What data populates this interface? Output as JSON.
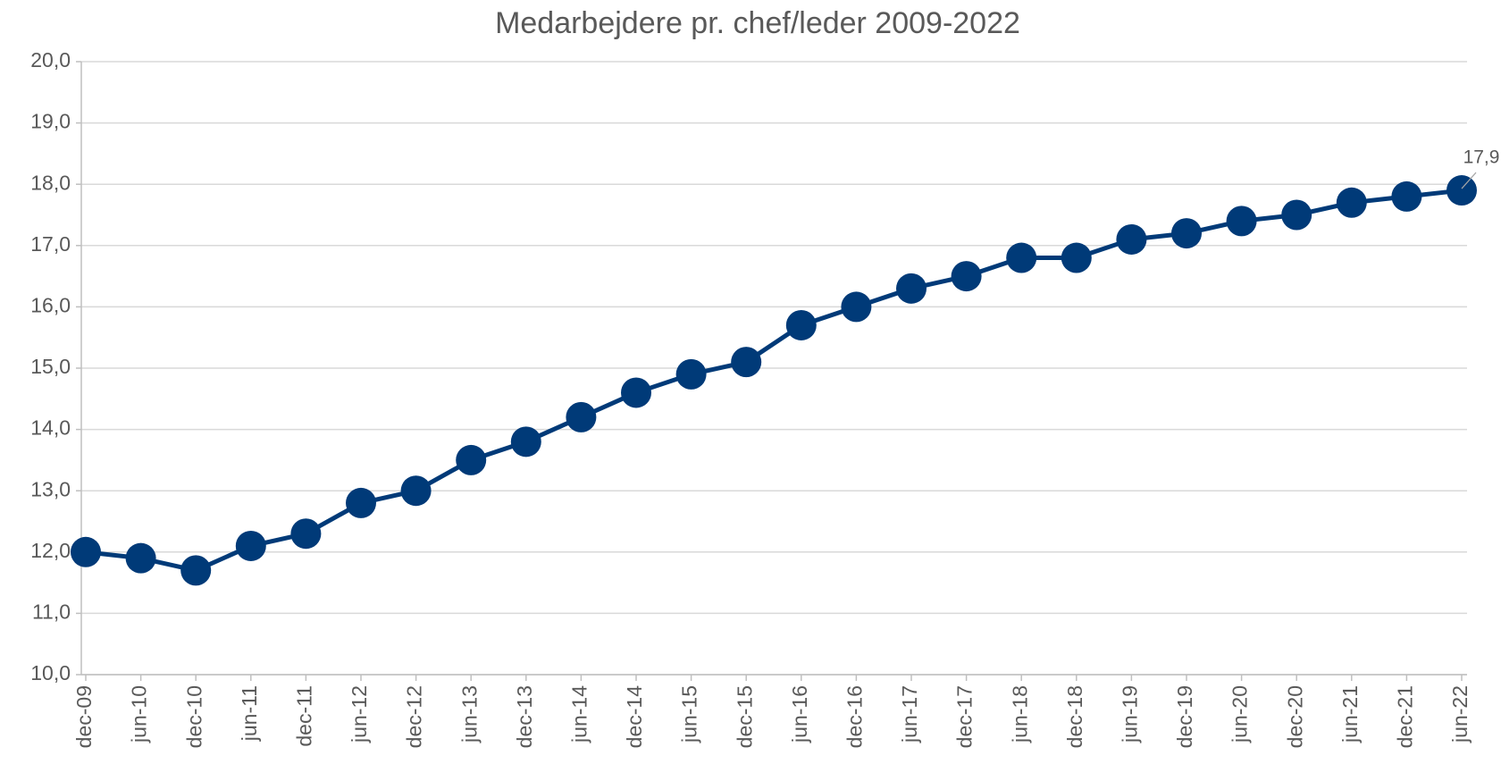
{
  "chart_data": {
    "type": "line",
    "title": "Medarbejdere pr. chef/leder 2009-2022",
    "categories": [
      "dec-09",
      "jun-10",
      "dec-10",
      "jun-11",
      "dec-11",
      "jun-12",
      "dec-12",
      "jun-13",
      "dec-13",
      "jun-14",
      "dec-14",
      "jun-15",
      "dec-15",
      "jun-16",
      "dec-16",
      "jun-17",
      "dec-17",
      "jun-18",
      "dec-18",
      "jun-19",
      "dec-19",
      "jun-20",
      "dec-20",
      "jun-21",
      "dec-21",
      "jun-22"
    ],
    "series": [
      {
        "name": "Medarbejdere pr. chef/leder",
        "color": "#003a78",
        "values": [
          12.0,
          11.9,
          11.7,
          12.1,
          12.3,
          12.8,
          13.0,
          13.5,
          13.8,
          14.2,
          14.6,
          14.9,
          15.1,
          15.7,
          16.0,
          16.3,
          16.5,
          16.8,
          16.8,
          17.1,
          17.2,
          17.4,
          17.5,
          17.7,
          17.8,
          17.9
        ],
        "value_labels": [
          null,
          null,
          null,
          null,
          null,
          null,
          null,
          null,
          null,
          null,
          null,
          null,
          null,
          null,
          null,
          null,
          null,
          null,
          null,
          null,
          null,
          null,
          null,
          null,
          null,
          "17,9"
        ]
      }
    ],
    "ylim": [
      10,
      20
    ],
    "yticks": [
      {
        "value": 10,
        "label": "10,0"
      },
      {
        "value": 11,
        "label": "11,0"
      },
      {
        "value": 12,
        "label": "12,0"
      },
      {
        "value": 13,
        "label": "13,0"
      },
      {
        "value": 14,
        "label": "14,0"
      },
      {
        "value": 15,
        "label": "15,0"
      },
      {
        "value": 16,
        "label": "16,0"
      },
      {
        "value": 17,
        "label": "17,0"
      },
      {
        "value": 18,
        "label": "18,0"
      },
      {
        "value": 19,
        "label": "19,0"
      },
      {
        "value": 20,
        "label": "20,0"
      }
    ],
    "grid": true
  }
}
